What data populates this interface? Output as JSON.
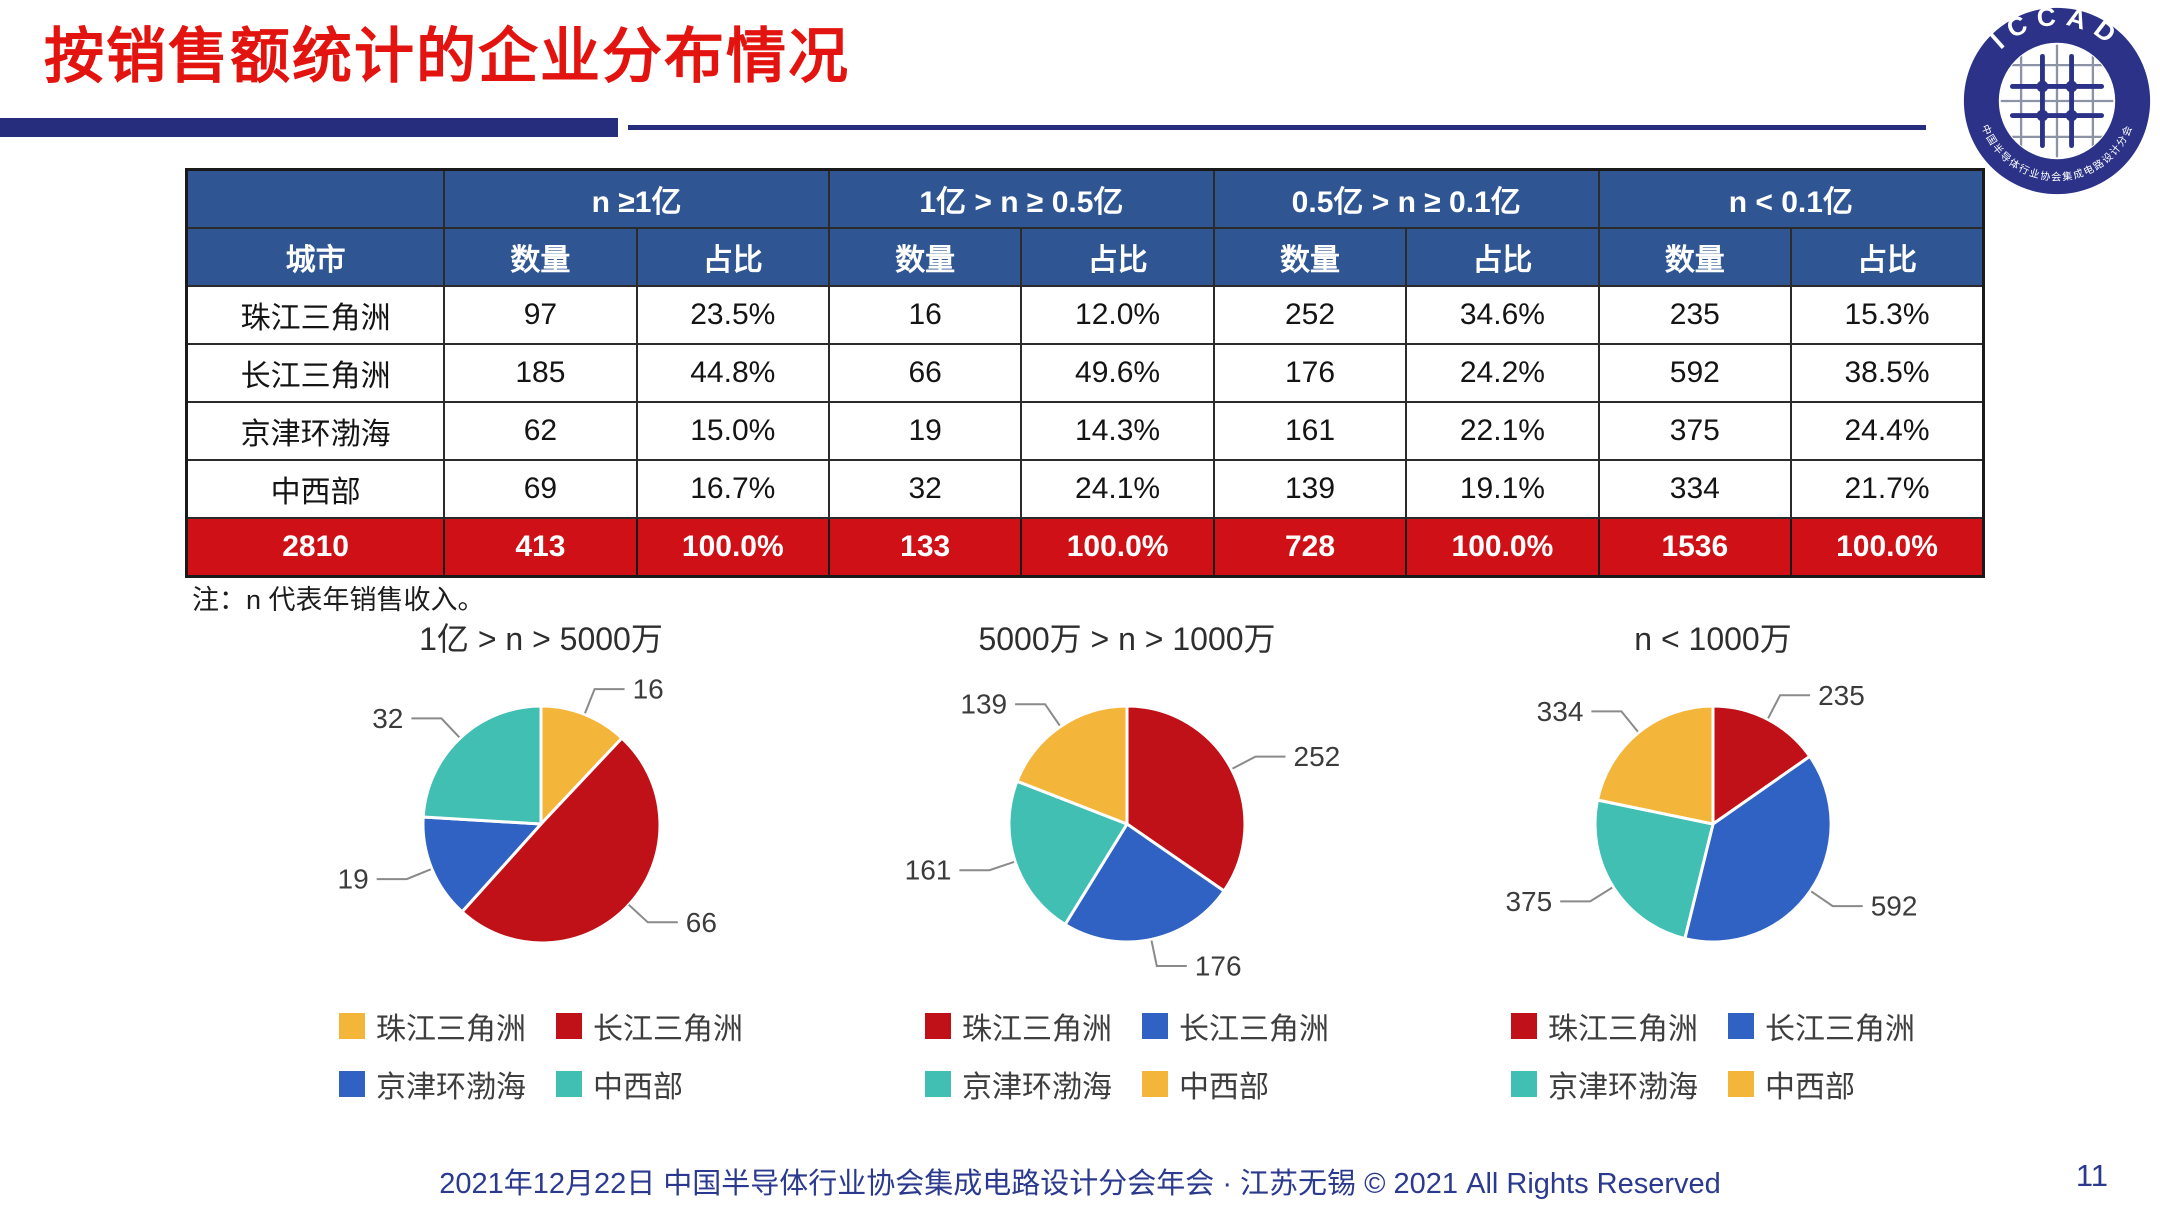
{
  "page": {
    "title": "按销售额统计的企业分布情况",
    "note": "注：n 代表年销售收入。",
    "footer": "2021年12月22日 中国半导体行业协会集成电路设计分会年会 · 江苏无锡 © 2021 All Rights Reserved",
    "page_number": "11"
  },
  "logo": {
    "text": "ICCAD",
    "subtext": "中国半导体行业协会集成电路设计分会"
  },
  "colors": {
    "yellow": "#F3B63B",
    "red": "#C01118",
    "blue": "#2F62C2",
    "teal": "#41BFB3",
    "header_navy": "#2F5592",
    "total_red": "#CF1016",
    "title_red": "#E3140F",
    "bar_navy": "#262D7C",
    "footer_navy": "#2B3A8F"
  },
  "table": {
    "corner_label": "",
    "col_groups": [
      "n ≥1亿",
      "1亿 > n ≥ 0.5亿",
      "0.5亿 > n ≥ 0.1亿",
      "n < 0.1亿"
    ],
    "sub_headers": [
      "城市",
      "数量",
      "占比",
      "数量",
      "占比",
      "数量",
      "占比",
      "数量",
      "占比"
    ],
    "rows": [
      [
        "珠江三角洲",
        "97",
        "23.5%",
        "16",
        "12.0%",
        "252",
        "34.6%",
        "235",
        "15.3%"
      ],
      [
        "长江三角洲",
        "185",
        "44.8%",
        "66",
        "49.6%",
        "176",
        "24.2%",
        "592",
        "38.5%"
      ],
      [
        "京津环渤海",
        "62",
        "15.0%",
        "19",
        "14.3%",
        "161",
        "22.1%",
        "375",
        "24.4%"
      ],
      [
        "中西部",
        "69",
        "16.7%",
        "32",
        "24.1%",
        "139",
        "19.1%",
        "334",
        "21.7%"
      ]
    ],
    "total_row": [
      "2810",
      "413",
      "100.0%",
      "133",
      "100.0%",
      "728",
      "100.0%",
      "1536",
      "100.0%"
    ]
  },
  "chart_data": [
    {
      "type": "pie",
      "title": "1亿 > n > 5000万",
      "start_angle": 0,
      "legend_position": "bottom",
      "total": 133,
      "slices": [
        {
          "label": "珠江三角洲",
          "value": 16,
          "color": "#F3B63B"
        },
        {
          "label": "长江三角洲",
          "value": 66,
          "color": "#C01118"
        },
        {
          "label": "京津环渤海",
          "value": 19,
          "color": "#2F62C2"
        },
        {
          "label": "中西部",
          "value": 32,
          "color": "#41BFB3"
        }
      ]
    },
    {
      "type": "pie",
      "title": "5000万 > n > 1000万",
      "start_angle": 0,
      "legend_position": "bottom",
      "total": 728,
      "slices": [
        {
          "label": "珠江三角洲",
          "value": 252,
          "color": "#C01118"
        },
        {
          "label": "长江三角洲",
          "value": 176,
          "color": "#2F62C2"
        },
        {
          "label": "京津环渤海",
          "value": 161,
          "color": "#41BFB3"
        },
        {
          "label": "中西部",
          "value": 139,
          "color": "#F3B63B"
        }
      ]
    },
    {
      "type": "pie",
      "title": "n < 1000万",
      "start_angle": 0,
      "legend_position": "bottom",
      "total": 1536,
      "slices": [
        {
          "label": "珠江三角洲",
          "value": 235,
          "color": "#C01118"
        },
        {
          "label": "长江三角洲",
          "value": 592,
          "color": "#2F62C2"
        },
        {
          "label": "京津环渤海",
          "value": 375,
          "color": "#41BFB3"
        },
        {
          "label": "中西部",
          "value": 334,
          "color": "#F3B63B"
        }
      ]
    }
  ]
}
